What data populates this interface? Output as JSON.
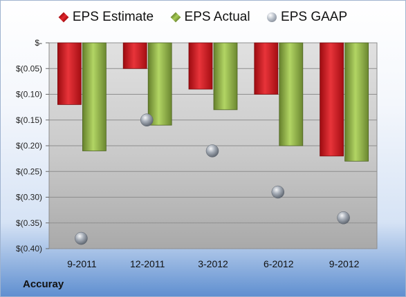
{
  "company": "Accuray",
  "colors": {
    "estimate": "#d9232b",
    "actual": "#96b84a",
    "gaap": "#9aa1ab"
  },
  "chart_data": {
    "type": "bar",
    "categories": [
      "9-2011",
      "12-2011",
      "3-2012",
      "6-2012",
      "9-2012"
    ],
    "series": [
      {
        "name": "EPS Estimate",
        "type": "bar",
        "values": [
          -0.12,
          -0.05,
          -0.09,
          -0.1,
          -0.22
        ]
      },
      {
        "name": "EPS Actual",
        "type": "bar",
        "values": [
          -0.21,
          -0.16,
          -0.13,
          -0.2,
          -0.23
        ]
      },
      {
        "name": "EPS GAAP",
        "type": "scatter",
        "values": [
          -0.38,
          -0.15,
          -0.21,
          -0.29,
          -0.34
        ]
      }
    ],
    "yticks": [
      0,
      -0.05,
      -0.1,
      -0.15,
      -0.2,
      -0.25,
      -0.3,
      -0.35,
      -0.4
    ],
    "ytick_labels": [
      "$-",
      "$(0.05)",
      "$(0.10)",
      "$(0.15)",
      "$(0.20)",
      "$(0.25)",
      "$(0.30)",
      "$(0.35)",
      "$(0.40)"
    ],
    "ylim": [
      -0.4,
      0
    ],
    "grid": true,
    "legend_position": "top"
  }
}
